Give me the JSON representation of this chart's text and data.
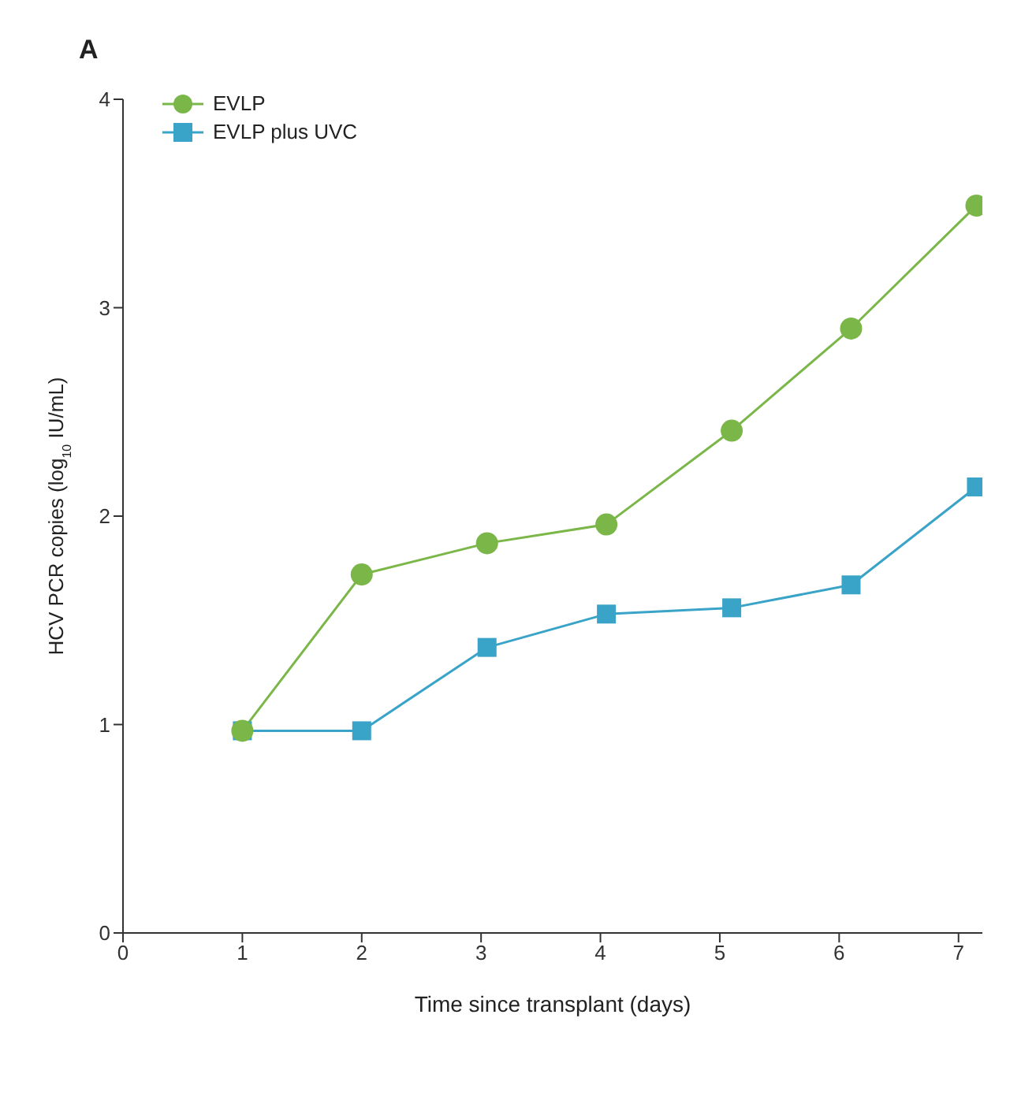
{
  "chart_data": {
    "type": "line",
    "title": "A",
    "xlabel": "Time since transplant (days)",
    "ylabel": "HCV PCR copies (log$_{10}$ IU/mL)",
    "xlim": [
      0,
      7.2
    ],
    "xticks": [
      0,
      1,
      2,
      3,
      4,
      5,
      6,
      7
    ],
    "ylim": [
      0,
      4
    ],
    "yticks": [
      0,
      1,
      2,
      3,
      4
    ],
    "grid": false,
    "legend": "top left",
    "line_style": "solid",
    "series": [
      {
        "name": "EVLP",
        "color": "#7ab648",
        "marker": "circle",
        "x": [
          1,
          2,
          3.05,
          4.05,
          5.1,
          6.1,
          7.15
        ],
        "values": [
          0.97,
          1.72,
          1.87,
          1.96,
          2.41,
          2.9,
          3.49
        ]
      },
      {
        "name": "EVLP plus UVC",
        "color": "#3aa3c8",
        "marker": "square",
        "x": [
          1,
          2,
          3.05,
          4.05,
          5.1,
          6.1,
          7.15
        ],
        "values": [
          0.97,
          0.97,
          1.37,
          1.53,
          1.56,
          1.67,
          2.14
        ]
      }
    ]
  }
}
